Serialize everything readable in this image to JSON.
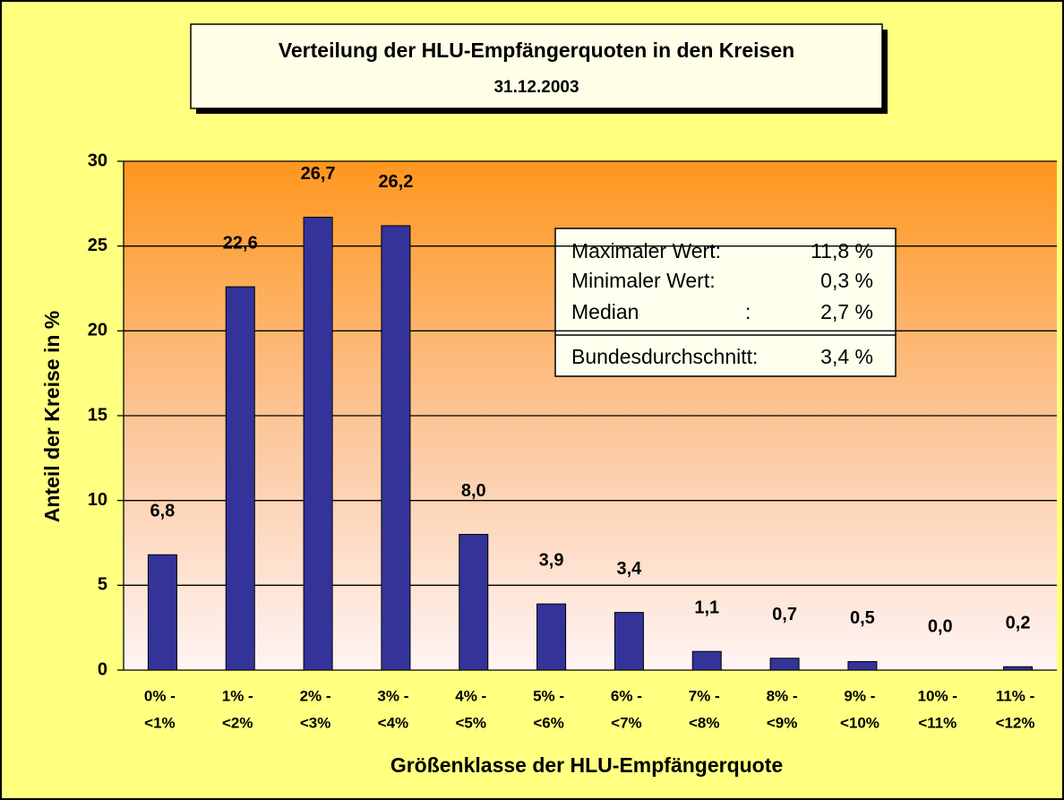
{
  "chart_data": {
    "type": "bar",
    "title": "Verteilung der HLU-Empfängerquoten in den Kreisen",
    "subtitle": "31.12.2003",
    "x_label": "Größenklasse der HLU-Empfängerquote",
    "y_label": "Anteil der Kreise in %",
    "categories": [
      [
        "0% -",
        "<1%"
      ],
      [
        "1% -",
        "<2%"
      ],
      [
        "2% -",
        "<3%"
      ],
      [
        "3% -",
        "<4%"
      ],
      [
        "4% -",
        "<5%"
      ],
      [
        "5% -",
        "<6%"
      ],
      [
        "6% -",
        "<7%"
      ],
      [
        "7% -",
        "<8%"
      ],
      [
        "8% -",
        "<9%"
      ],
      [
        "9% -",
        "<10%"
      ],
      [
        "10% -",
        "<11%"
      ],
      [
        "11% -",
        "<12%"
      ]
    ],
    "values": [
      6.8,
      22.6,
      26.7,
      26.2,
      8.0,
      3.9,
      3.4,
      1.1,
      0.7,
      0.5,
      0.0,
      0.2
    ],
    "value_labels": [
      "6,8",
      "22,6",
      "26,7",
      "26,2",
      "8,0",
      "3,9",
      "3,4",
      "1,1",
      "0,7",
      "0,5",
      "0,0",
      "0,2"
    ],
    "color": "#333399",
    "ylim": [
      0,
      30
    ],
    "yticks": [
      0,
      5,
      10,
      15,
      20,
      25,
      30
    ],
    "grid": true,
    "stats": [
      {
        "label": "Maximaler Wert:",
        "value": "11,8 %"
      },
      {
        "label": "Minimaler Wert:",
        "value": "0,3 %"
      },
      {
        "label": "Median",
        "sep": ":",
        "value": "2,7 %"
      },
      {
        "label": "Bundesdurchschnitt:",
        "value": "3,4 %"
      }
    ]
  }
}
